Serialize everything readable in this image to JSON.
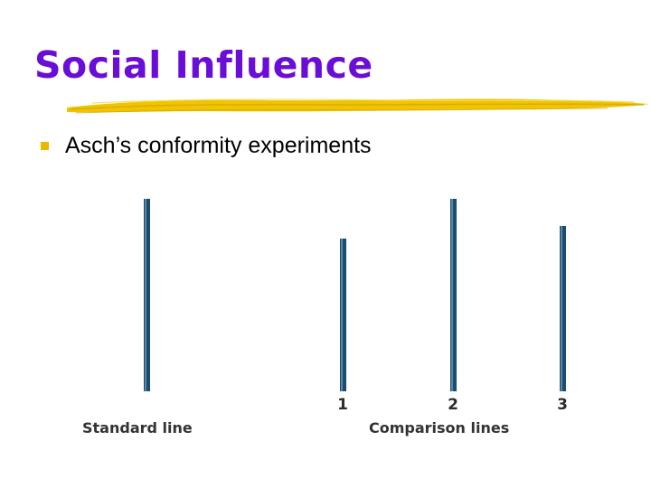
{
  "slide": {
    "title": "Social Influence",
    "bullet": "Asch’s conformity experiments"
  },
  "figure": {
    "standard_label": "Standard line",
    "comparison_label": "Comparison lines",
    "comparison_numbers": [
      "1",
      "2",
      "3"
    ],
    "line_color": "#1b4e6e"
  },
  "colors": {
    "title": "#6a0dd6",
    "accent": "#e8b800"
  }
}
